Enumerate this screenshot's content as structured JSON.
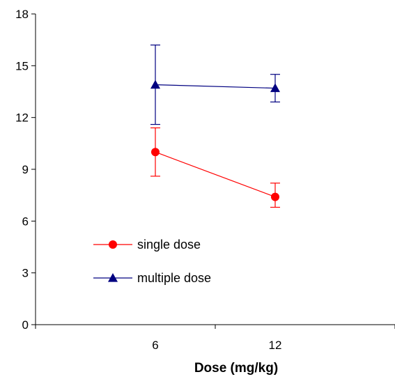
{
  "chart_data": {
    "type": "line",
    "title": "",
    "xlabel": "Dose (mg/kg)",
    "ylabel": "",
    "xlim": [
      0,
      18
    ],
    "ylim": [
      0,
      18
    ],
    "yticks": [
      0,
      3,
      6,
      9,
      12,
      15,
      18
    ],
    "xtick_labels": [
      {
        "value": 6,
        "label": "6"
      },
      {
        "value": 12,
        "label": "12"
      }
    ],
    "grid": false,
    "legend_position": "left-center",
    "series": [
      {
        "name": "single dose",
        "color": "#ff0000",
        "marker": "circle",
        "points": [
          {
            "x": 6,
            "y": 10.0,
            "err_low": 8.6,
            "err_high": 11.4
          },
          {
            "x": 12,
            "y": 7.4,
            "err_low": 6.8,
            "err_high": 8.2
          }
        ]
      },
      {
        "name": "multiple dose",
        "color": "#000080",
        "marker": "triangle",
        "points": [
          {
            "x": 6,
            "y": 13.9,
            "err_low": 11.6,
            "err_high": 16.2
          },
          {
            "x": 12,
            "y": 13.7,
            "err_low": 12.9,
            "err_high": 14.5
          }
        ]
      }
    ]
  }
}
